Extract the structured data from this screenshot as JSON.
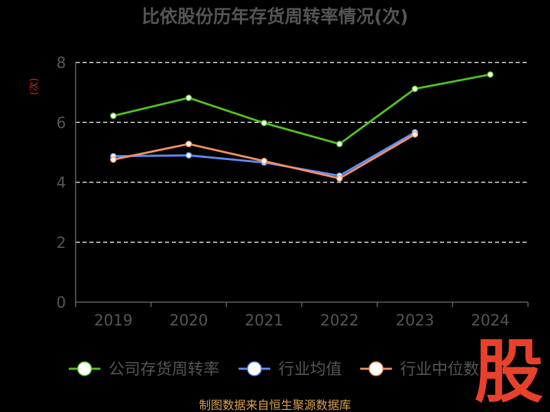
{
  "chart_data": {
    "type": "line",
    "title": "比依股份历年存货周转率情况(次)",
    "ylabel": "(次)",
    "categories": [
      "2019",
      "2020",
      "2021",
      "2022",
      "2023",
      "2024"
    ],
    "ylim": [
      0,
      8
    ],
    "yticks": [
      0,
      2,
      4,
      6,
      8
    ],
    "grid": "dashed-horizontal",
    "legend_position": "bottom",
    "series": [
      {
        "name": "公司存货周转率",
        "color": "#52c41a",
        "values": [
          6.22,
          6.82,
          5.98,
          5.28,
          7.12,
          7.6
        ]
      },
      {
        "name": "行业均值",
        "color": "#5b8ff9",
        "values": [
          4.87,
          4.9,
          4.66,
          4.22,
          5.67,
          null
        ]
      },
      {
        "name": "行业中位数",
        "color": "#f6905e",
        "values": [
          4.76,
          5.28,
          4.71,
          4.13,
          5.6,
          null
        ]
      }
    ]
  },
  "source_text": "制图数据来自恒生聚源数据库",
  "watermark_text": "股"
}
